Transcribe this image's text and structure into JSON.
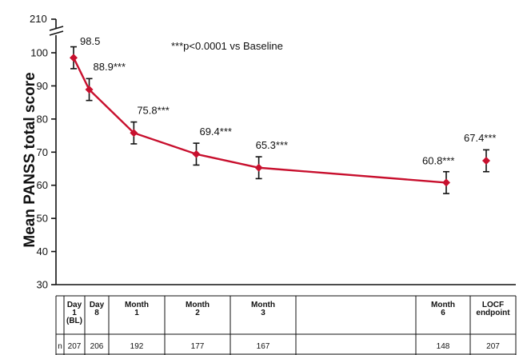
{
  "chart_data": {
    "type": "line",
    "title": "",
    "xlabel": "",
    "ylabel": "Mean PANSS total score",
    "ylim": [
      30,
      110
    ],
    "axis_break": true,
    "y_ticks": [
      30,
      40,
      50,
      60,
      70,
      80,
      90,
      100
    ],
    "y_top_label": "210",
    "annotation": "***p<0.0001 vs Baseline",
    "grid": false,
    "color": "#c8102e",
    "points": [
      {
        "x_label": "Day 1 (BL)",
        "x_day": 1,
        "value": 98.5,
        "error": 3.3,
        "label": "98.5"
      },
      {
        "x_label": "Day 8",
        "x_day": 8,
        "value": 88.9,
        "error": 3.3,
        "label": "88.9***"
      },
      {
        "x_label": "Month 1",
        "x_day": 28,
        "value": 75.8,
        "error": 3.3,
        "label": "75.8***"
      },
      {
        "x_label": "Month 2",
        "x_day": 56,
        "value": 69.4,
        "error": 3.3,
        "label": "69.4***"
      },
      {
        "x_label": "Month 3",
        "x_day": 84,
        "value": 65.3,
        "error": 3.3,
        "label": "65.3***"
      },
      {
        "x_label": "Month 6",
        "x_day": 168,
        "value": 60.8,
        "error": 3.3,
        "label": "60.8***"
      }
    ],
    "endpoint": {
      "x_label": "LOCF endpoint",
      "value": 67.4,
      "error": 3.3,
      "label": "67.4***"
    }
  },
  "table": {
    "row_label": "n",
    "columns": [
      {
        "header": [
          "Day",
          "1",
          "(BL)"
        ],
        "n": "207"
      },
      {
        "header": [
          "Day",
          "8"
        ],
        "n": "206"
      },
      {
        "header": [
          "Month",
          "1"
        ],
        "n": "192"
      },
      {
        "header": [
          "Month",
          "2"
        ],
        "n": "177"
      },
      {
        "header": [
          "Month",
          "3"
        ],
        "n": "167"
      },
      {
        "header": [],
        "n": ""
      },
      {
        "header": [
          "Month",
          "6"
        ],
        "n": "148"
      },
      {
        "header": [
          "LOCF",
          "endpoint"
        ],
        "n": "207"
      }
    ]
  }
}
